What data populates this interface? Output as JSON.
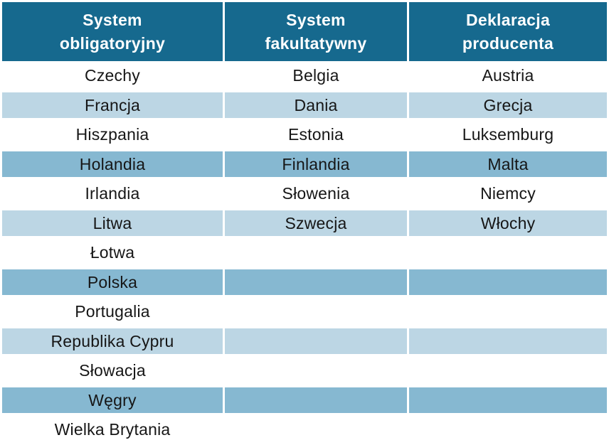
{
  "table": {
    "columns": [
      {
        "label": "System obligatoryjny",
        "line1": "System",
        "line2": "obligatoryjny"
      },
      {
        "label": "System fakultatywny",
        "line1": "System",
        "line2": "fakultatywny"
      },
      {
        "label": "Deklaracja producenta",
        "line1": "Deklaracja",
        "line2": "producenta"
      }
    ],
    "rows": [
      {
        "style": "white",
        "cells": [
          "Czechy",
          "Belgia",
          "Austria"
        ]
      },
      {
        "style": "light",
        "cells": [
          "Francja",
          "Dania",
          "Grecja"
        ]
      },
      {
        "style": "white",
        "cells": [
          "Hiszpania",
          "Estonia",
          "Luksemburg"
        ]
      },
      {
        "style": "medium",
        "cells": [
          "Holandia",
          "Finlandia",
          "Malta"
        ]
      },
      {
        "style": "white",
        "cells": [
          "Irlandia",
          "Słowenia",
          "Niemcy"
        ]
      },
      {
        "style": "light",
        "cells": [
          "Litwa",
          "Szwecja",
          "Włochy"
        ]
      },
      {
        "style": "white",
        "cells": [
          "Łotwa",
          "",
          ""
        ]
      },
      {
        "style": "medium",
        "cells": [
          "Polska",
          "",
          ""
        ]
      },
      {
        "style": "white",
        "cells": [
          "Portugalia",
          "",
          ""
        ]
      },
      {
        "style": "light",
        "cells": [
          "Republika Cypru",
          "",
          ""
        ]
      },
      {
        "style": "white",
        "cells": [
          "Słowacja",
          "",
          ""
        ]
      },
      {
        "style": "medium",
        "cells": [
          "Węgry",
          "",
          ""
        ]
      },
      {
        "style": "white",
        "cells": [
          "Wielka Brytania",
          "",
          ""
        ]
      }
    ],
    "colors": {
      "header_bg": "#16698E",
      "header_text": "#FFFFFF",
      "row_light": "#BCD6E4",
      "row_medium": "#86B8D1",
      "row_white": "#FFFFFF",
      "body_text": "#161616",
      "separator": "#FFFFFF"
    }
  }
}
